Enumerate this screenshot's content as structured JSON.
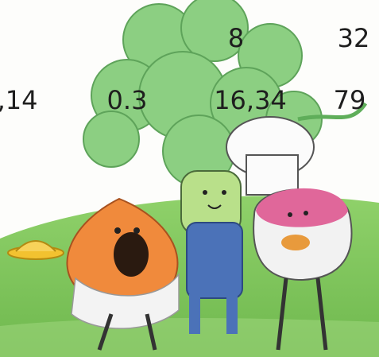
{
  "numbers": [
    ",14",
    "0.3",
    "16,34",
    "79",
    "8",
    "32"
  ]
}
